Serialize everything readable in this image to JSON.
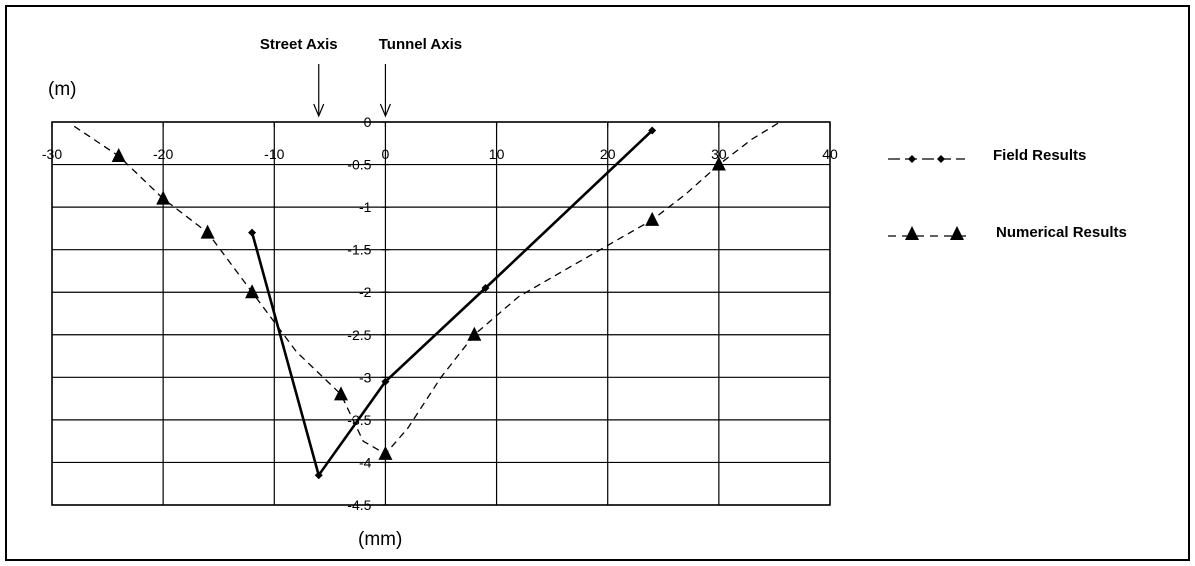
{
  "chart_data": {
    "type": "line",
    "title": "",
    "xlabel": "(mm)",
    "ylabel": "(m)",
    "xlim": [
      -30,
      40
    ],
    "ylim": [
      -4.5,
      0
    ],
    "x_ticks": [
      -30,
      -20,
      -10,
      0,
      10,
      20,
      30,
      40
    ],
    "y_ticks": [
      0,
      -0.5,
      -1,
      -1.5,
      -2,
      -2.5,
      -3,
      -3.5,
      -4,
      -4.5
    ],
    "x_tick_labels": [
      "-30",
      "-20",
      "-10",
      "0",
      "10",
      "20",
      "30",
      "40"
    ],
    "y_tick_labels": [
      "0",
      "-0.5",
      "-1",
      "-1.5",
      "-2",
      "-2.5",
      "-3",
      "-3.5",
      "-4",
      "-4.5"
    ],
    "grid": true,
    "annotations": [
      {
        "text": "Street Axis",
        "x": -6
      },
      {
        "text": "Tunnel Axis",
        "x": 0
      }
    ],
    "series": [
      {
        "name": "Field  Results",
        "marker": "diamond",
        "line": "solid",
        "color": "#000000",
        "points": [
          [
            -12,
            -1.3
          ],
          [
            -6,
            -4.15
          ],
          [
            0,
            -3.05
          ],
          [
            9,
            -1.95
          ],
          [
            24,
            -0.1
          ]
        ]
      },
      {
        "name": "Numerical Results",
        "marker": "triangle",
        "line": "dashed",
        "color": "#000000",
        "points": [
          [
            -24,
            -0.4
          ],
          [
            -20,
            -0.9
          ],
          [
            -16,
            -1.3
          ],
          [
            -12,
            -2.0
          ],
          [
            -4,
            -3.2
          ],
          [
            0,
            -3.9
          ],
          [
            8,
            -2.5
          ],
          [
            24,
            -1.15
          ],
          [
            30,
            -0.5
          ]
        ],
        "curve": [
          [
            -28,
            -0.05
          ],
          [
            -24,
            -0.4
          ],
          [
            -20,
            -0.9
          ],
          [
            -16,
            -1.3
          ],
          [
            -12,
            -2.0
          ],
          [
            -8,
            -2.7
          ],
          [
            -4,
            -3.2
          ],
          [
            -2,
            -3.75
          ],
          [
            0,
            -3.9
          ],
          [
            2,
            -3.6
          ],
          [
            5,
            -3.0
          ],
          [
            8,
            -2.5
          ],
          [
            12,
            -2.05
          ],
          [
            16,
            -1.75
          ],
          [
            20,
            -1.45
          ],
          [
            24,
            -1.15
          ],
          [
            27,
            -0.85
          ],
          [
            30,
            -0.5
          ],
          [
            33,
            -0.2
          ],
          [
            35.5,
            0
          ]
        ]
      }
    ]
  }
}
